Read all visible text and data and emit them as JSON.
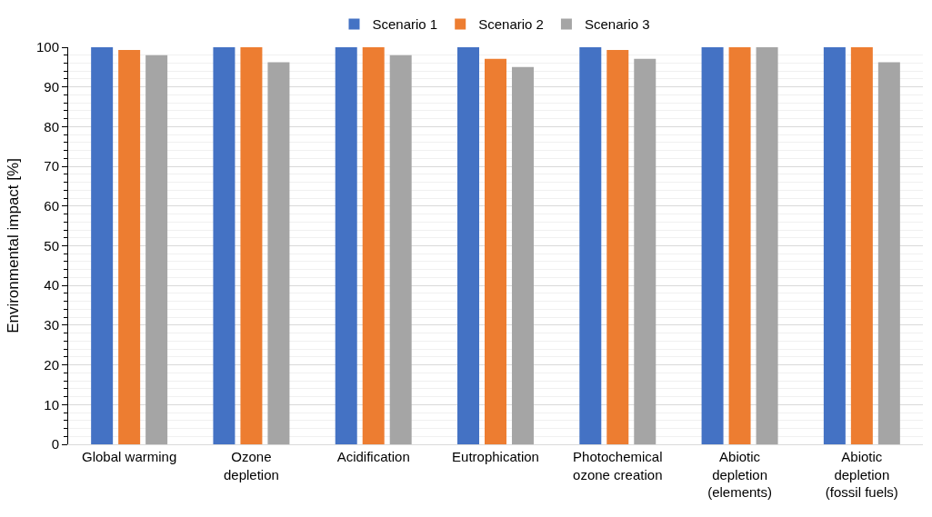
{
  "chart_data": {
    "type": "bar",
    "ylabel": "Environmental impact [%]",
    "categories": [
      "Global warming",
      "Ozone depletion",
      "Acidification",
      "Eutrophication",
      "Photochemical ozone creation",
      "Abiotic depletion (elements)",
      "Abiotic depletion (fossil fuels)"
    ],
    "series": [
      {
        "name": "Scenario 1",
        "color": "#4472c4",
        "values": [
          100,
          100,
          100,
          100,
          100,
          100,
          100
        ]
      },
      {
        "name": "Scenario 2",
        "color": "#ed7d31",
        "values": [
          99.3,
          100,
          100,
          97.1,
          99.3,
          100,
          100
        ]
      },
      {
        "name": "Scenario 3",
        "color": "#a5a5a5",
        "values": [
          98,
          96.2,
          98,
          95,
          97.1,
          100,
          96.2
        ]
      }
    ],
    "ylim": [
      0,
      100
    ],
    "yticks": [
      0,
      10,
      20,
      30,
      40,
      50,
      60,
      70,
      80,
      90,
      100
    ],
    "grid": "y",
    "legend": "top"
  }
}
